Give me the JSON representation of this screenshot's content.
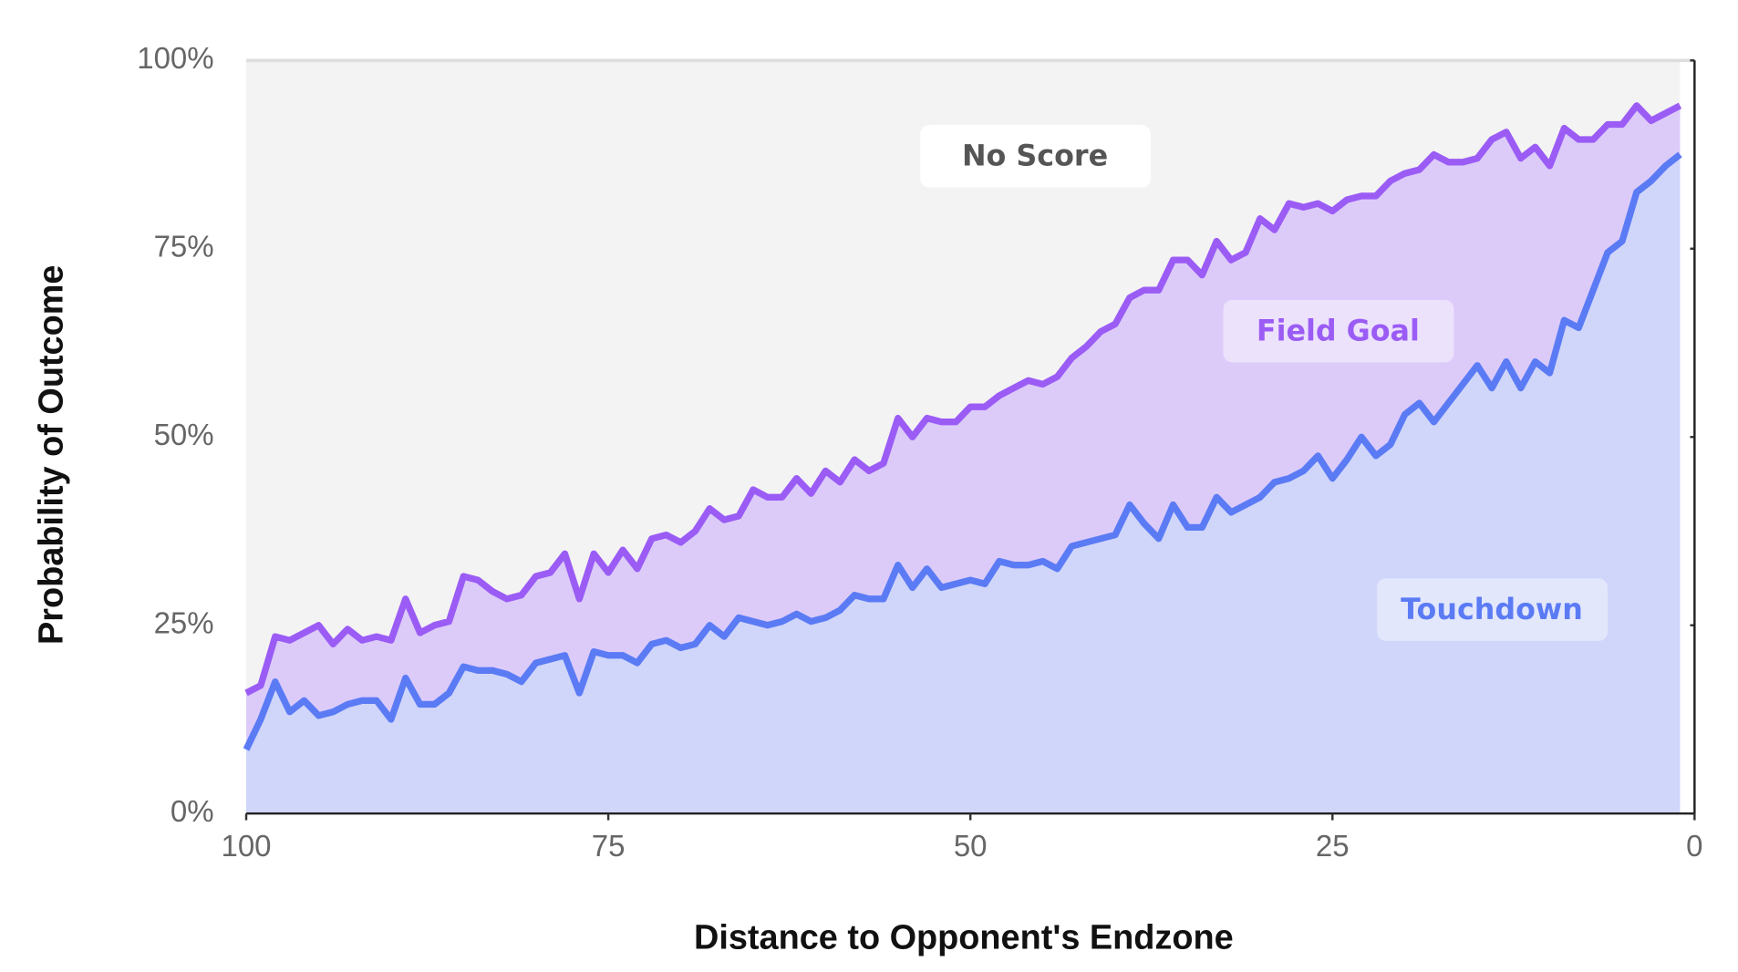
{
  "chart_data": {
    "type": "stacked_area",
    "xlabel": "Distance to Opponent's Endzone",
    "ylabel": "Probability of Outcome",
    "x": [
      100,
      99,
      98,
      97,
      96,
      95,
      94,
      93,
      92,
      91,
      90,
      89,
      88,
      87,
      86,
      85,
      84,
      83,
      82,
      81,
      80,
      79,
      78,
      77,
      76,
      75,
      74,
      73,
      72,
      71,
      70,
      69,
      68,
      67,
      66,
      65,
      64,
      63,
      62,
      61,
      60,
      59,
      58,
      57,
      56,
      55,
      54,
      53,
      52,
      51,
      50,
      49,
      48,
      47,
      46,
      45,
      44,
      43,
      42,
      41,
      40,
      39,
      38,
      37,
      36,
      35,
      34,
      33,
      32,
      31,
      30,
      29,
      28,
      27,
      26,
      25,
      24,
      23,
      22,
      21,
      20,
      19,
      18,
      17,
      16,
      15,
      14,
      13,
      12,
      11,
      10,
      9,
      8,
      7,
      6,
      5,
      4,
      3,
      2,
      1
    ],
    "series": [
      {
        "name": "Touchdown",
        "color": "#5b7bf5",
        "fill": "#d0d6fa",
        "values": [
          8.5,
          12.5,
          17.5,
          13.5,
          15,
          13,
          13.5,
          14.5,
          15,
          15,
          12.5,
          18,
          14.5,
          14.5,
          16,
          19.5,
          19,
          19,
          18.5,
          17.5,
          20,
          20.5,
          21,
          16,
          21.5,
          21,
          21,
          20,
          22.5,
          23,
          22,
          22.5,
          25,
          23.5,
          26,
          25.5,
          25,
          25.5,
          26.5,
          25.5,
          26,
          27,
          29,
          28.5,
          28.5,
          33,
          30,
          32.5,
          30,
          30.5,
          31,
          30.5,
          33.5,
          33,
          33,
          33.5,
          32.5,
          35.5,
          36,
          36.5,
          37,
          41,
          38.5,
          36.5,
          41,
          38,
          38,
          42,
          40,
          41,
          42,
          44,
          44.5,
          45.5,
          47.5,
          44.5,
          47,
          50,
          47.5,
          49,
          53,
          54.5,
          52,
          54.5,
          57,
          59.5,
          56.5,
          60,
          56.5,
          60,
          58.5,
          65.5,
          64.5,
          69.5,
          74.5,
          76,
          82.5,
          84,
          86,
          87.5
        ]
      },
      {
        "name": "Field Goal",
        "color": "#9b5cf5",
        "fill": "#dccbf9",
        "values": [
          7.5,
          4.5,
          6,
          9.5,
          9,
          12,
          9,
          10,
          8,
          8.5,
          10.5,
          10.5,
          9.5,
          10.5,
          9.5,
          12,
          12,
          10.5,
          10,
          11.5,
          11.5,
          11.5,
          13.5,
          12.5,
          13,
          11,
          14,
          12.5,
          14,
          14,
          14,
          15,
          15.5,
          15.5,
          13.5,
          17.5,
          17,
          16.5,
          18,
          17,
          19.5,
          17,
          18,
          17,
          18,
          19.5,
          20,
          20,
          22,
          21.5,
          23,
          23.5,
          22,
          23.5,
          24.5,
          23.5,
          25.5,
          25,
          26,
          27.5,
          28,
          27.5,
          31,
          33,
          32.5,
          35.5,
          33.5,
          34,
          33.5,
          33.5,
          37,
          33.5,
          36.5,
          35,
          33.5,
          35.5,
          34.5,
          32,
          34.5,
          35,
          32,
          31,
          35.5,
          32,
          29.5,
          27.5,
          33,
          30.5,
          30.5,
          28.5,
          27.5,
          25.5,
          25,
          20,
          17,
          15.5,
          11.5,
          8,
          7,
          6.5
        ]
      }
    ],
    "annotations": [
      "No Score",
      "Field Goal",
      "Touchdown"
    ],
    "background": "#f3f3f3",
    "xlim": [
      100,
      0
    ],
    "xticks": [
      100,
      75,
      50,
      25,
      0
    ],
    "ylim": [
      0,
      100
    ],
    "yticks": [
      {
        "value": 0,
        "label": "0%"
      },
      {
        "value": 25,
        "label": "25%"
      },
      {
        "value": 50,
        "label": "50%"
      },
      {
        "value": 75,
        "label": "75%"
      },
      {
        "value": 100,
        "label": "100%"
      }
    ]
  }
}
